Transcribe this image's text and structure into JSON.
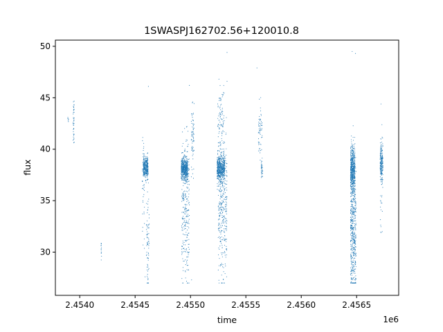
{
  "chart_data": {
    "type": "scatter",
    "title": "1SWASPJ162702.56+120010.8",
    "xlabel": "time",
    "ylabel": "flux",
    "x_offset_label": "1e6",
    "xlim": [
      2453780,
      2456880
    ],
    "ylim": [
      25.8,
      50.6
    ],
    "x_ticks": [
      2454000,
      2454500,
      2455000,
      2455500,
      2456000,
      2456500
    ],
    "x_tick_labels": [
      "2.4540",
      "2.4545",
      "2.4550",
      "2.4555",
      "2.4560",
      "2.4565"
    ],
    "y_ticks": [
      30,
      35,
      40,
      45,
      50
    ],
    "y_tick_labels": [
      "30",
      "35",
      "40",
      "45",
      "50"
    ],
    "grid": false,
    "marker_color": "#1f77b4",
    "series": [
      {
        "clusters": [
          {
            "x_center": 2453895,
            "x_width": 8,
            "y_center": 43.0,
            "y_spread": 0.2,
            "n": 6
          },
          {
            "x_center": 2453945,
            "x_width": 10,
            "y_center": 43.0,
            "y_spread": 1.3,
            "n": 40
          },
          {
            "x_center": 2454195,
            "x_width": 6,
            "y_center": 30.2,
            "y_spread": 0.4,
            "n": 14
          },
          {
            "x_center": 2454595,
            "x_width": 45,
            "y_center": 38.2,
            "y_spread": 0.5,
            "n": 320
          },
          {
            "x_center": 2454575,
            "x_width": 20,
            "y_center": 36.0,
            "y_spread": 2.2,
            "n": 40
          },
          {
            "x_center": 2454615,
            "x_width": 25,
            "y_center": 31.0,
            "y_spread": 3.0,
            "n": 80
          },
          {
            "x_center": 2454945,
            "x_width": 60,
            "y_center": 38.1,
            "y_spread": 0.5,
            "n": 480
          },
          {
            "x_center": 2454955,
            "x_width": 70,
            "y_center": 34.0,
            "y_spread": 3.6,
            "n": 300
          },
          {
            "x_center": 2455020,
            "x_width": 25,
            "y_center": 41.0,
            "y_spread": 1.6,
            "n": 70
          },
          {
            "x_center": 2455275,
            "x_width": 70,
            "y_center": 38.1,
            "y_spread": 0.6,
            "n": 520
          },
          {
            "x_center": 2455290,
            "x_width": 80,
            "y_center": 34.0,
            "y_spread": 3.6,
            "n": 350
          },
          {
            "x_center": 2455275,
            "x_width": 60,
            "y_center": 43.0,
            "y_spread": 1.8,
            "n": 90
          },
          {
            "x_center": 2455630,
            "x_width": 35,
            "y_center": 42.0,
            "y_spread": 1.2,
            "n": 60
          },
          {
            "x_center": 2455645,
            "x_width": 12,
            "y_center": 38.0,
            "y_spread": 0.4,
            "n": 35
          },
          {
            "x_center": 2456465,
            "x_width": 40,
            "y_center": 38.0,
            "y_spread": 1.2,
            "n": 520
          },
          {
            "x_center": 2456470,
            "x_width": 50,
            "y_center": 32.0,
            "y_spread": 3.4,
            "n": 520
          },
          {
            "x_center": 2456725,
            "x_width": 25,
            "y_center": 38.6,
            "y_spread": 1.0,
            "n": 200
          },
          {
            "x_center": 2456725,
            "x_width": 20,
            "y_center": 36.5,
            "y_spread": 2.5,
            "n": 25
          }
        ],
        "points": [
          {
            "x": 2455330,
            "y": 49.4
          },
          {
            "x": 2456460,
            "y": 49.5
          },
          {
            "x": 2456490,
            "y": 49.3
          },
          {
            "x": 2455600,
            "y": 47.9
          },
          {
            "x": 2454620,
            "y": 46.1
          },
          {
            "x": 2454990,
            "y": 46.2
          },
          {
            "x": 2455010,
            "y": 27.3
          },
          {
            "x": 2456720,
            "y": 44.4
          },
          {
            "x": 2456720,
            "y": 31.9
          },
          {
            "x": 2456720,
            "y": 34.1
          },
          {
            "x": 2455330,
            "y": 46.6
          },
          {
            "x": 2454590,
            "y": 27.6
          }
        ]
      }
    ]
  }
}
